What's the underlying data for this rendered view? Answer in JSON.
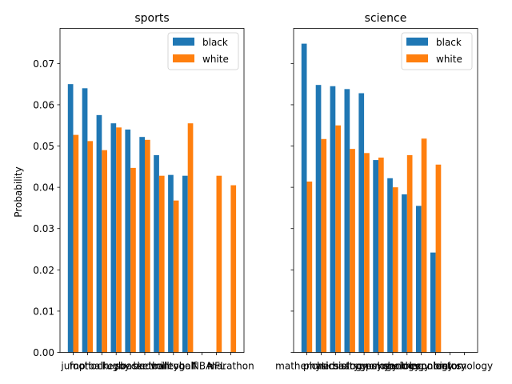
{
  "chart_data": [
    {
      "type": "bar",
      "title": "sports",
      "ylabel": "Probability",
      "ylim": [
        0,
        0.0785
      ],
      "yticks": [
        "0.00",
        "0.01",
        "0.02",
        "0.03",
        "0.04",
        "0.05",
        "0.06",
        "0.07"
      ],
      "categories": [
        "jump",
        "football",
        "hockey",
        "rugby",
        "soccer",
        "basketball",
        "badminton",
        "volleyball",
        "golf",
        "NBA",
        "NFL",
        "marathon"
      ],
      "series": [
        {
          "name": "black",
          "values": [
            0.065,
            0.064,
            0.0575,
            0.0555,
            0.054,
            0.0522,
            0.0478,
            0.043,
            0.0428,
            null,
            null,
            null
          ]
        },
        {
          "name": "white",
          "values": [
            0.0527,
            0.0512,
            0.049,
            0.0545,
            0.0447,
            0.0515,
            0.0428,
            0.0368,
            0.0555,
            null,
            0.0428,
            0.0405
          ]
        }
      ],
      "legend": "top-right"
    },
    {
      "type": "bar",
      "title": "science",
      "ylim": [
        0,
        0.0785
      ],
      "categories": [
        "mathematics",
        "physics",
        "chemistry",
        "biology",
        "astronomy",
        "geology",
        "psychology",
        "sociology",
        "anthropology",
        "economics",
        "history",
        "entomology"
      ],
      "series": [
        {
          "name": "black",
          "values": [
            0.0748,
            0.0648,
            0.0645,
            0.0638,
            0.0628,
            0.0466,
            0.0422,
            0.0383,
            0.0355,
            0.0242,
            null,
            null
          ]
        },
        {
          "name": "white",
          "values": [
            0.0414,
            0.0517,
            0.055,
            0.0493,
            0.0483,
            0.0472,
            0.04,
            0.0478,
            0.0518,
            0.0455,
            null,
            null
          ]
        }
      ],
      "legend": "top-right"
    }
  ],
  "colors": {
    "black": "#1f77b4",
    "white": "#ff7f0e"
  }
}
